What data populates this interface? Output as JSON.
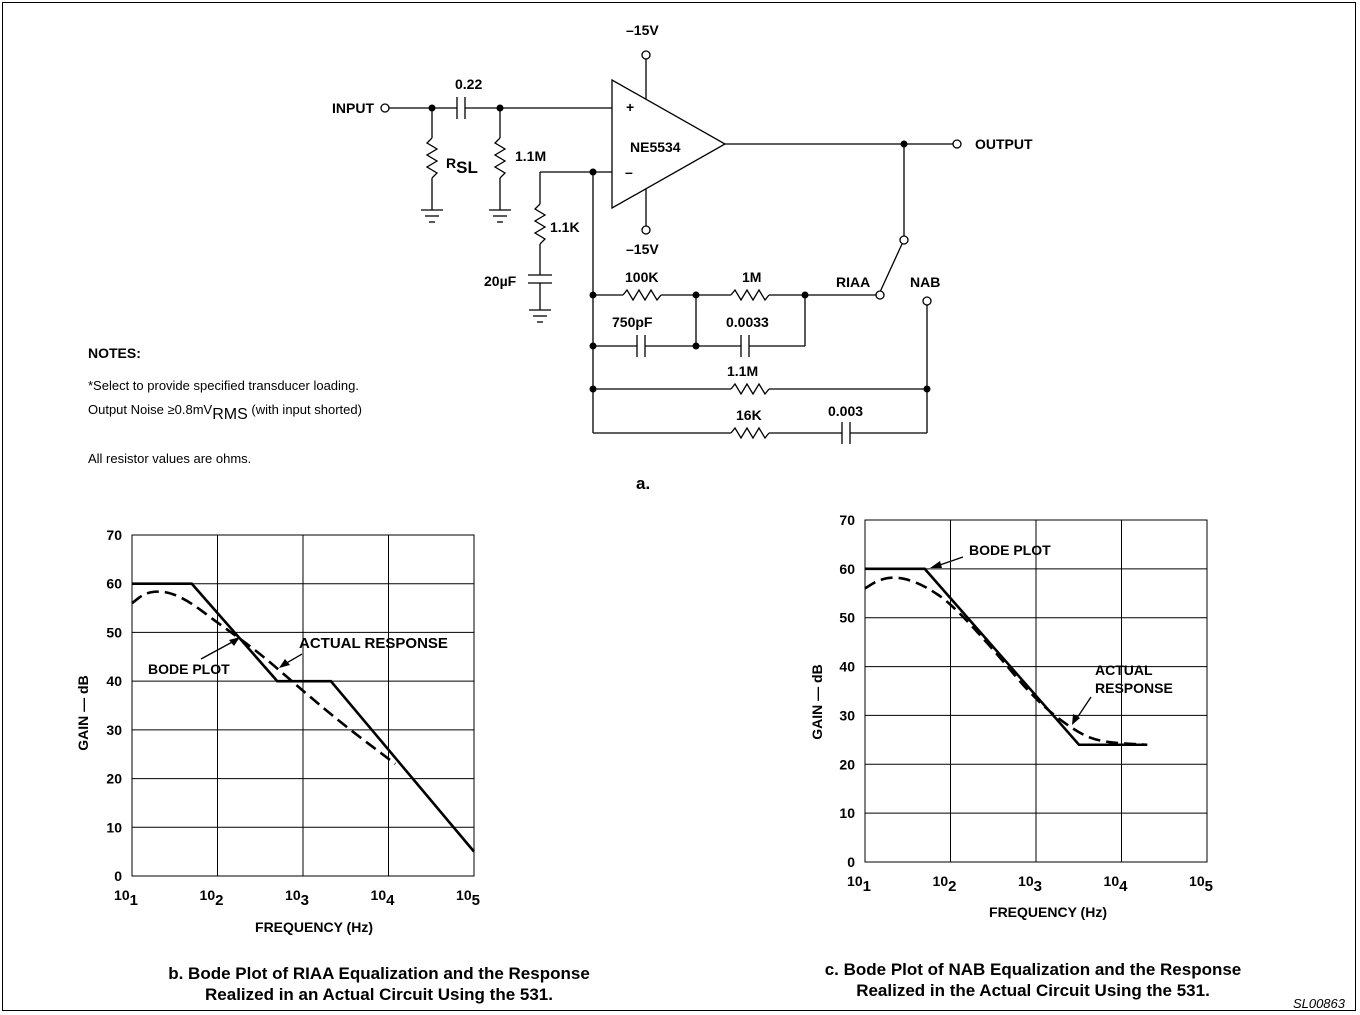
{
  "schematic": {
    "input_label": "INPUT",
    "output_label": "OUTPUT",
    "opamp_label": "NE5534",
    "plus_sign": "+",
    "minus_sign": "–",
    "supply_top": "–15V",
    "supply_bottom": "–15V",
    "c_input": "0.22",
    "r_sl_main": "R",
    "r_sl_sub": "SL",
    "r_bias": "1.1M",
    "r_gnd": "1.1K",
    "c_gnd": "20µF",
    "r_100k": "100K",
    "r_1m": "1M",
    "c_750p": "750pF",
    "c_0033": "0.0033",
    "r_11m": "1.1M",
    "r_16k": "16K",
    "c_0003": "0.003",
    "riaa_label": "RIAA",
    "nab_label": "NAB",
    "sub_label": "a."
  },
  "notes": {
    "title": "NOTES:",
    "line1": "*Select to provide specified transducer loading.",
    "line2_main": "Output Noise ≥0.8mV",
    "line2_sub": "RMS",
    "line2_tail": " (with input shorted)",
    "line3": "All resistor values are ohms."
  },
  "chart_data": [
    {
      "type": "line",
      "xlabel": "FREQUENCY (Hz)",
      "ylabel": "GAIN — dB",
      "x_scale": "log",
      "xlim": [
        10,
        100000
      ],
      "ylim": [
        0,
        70
      ],
      "y_ticks": [
        "0",
        "10",
        "20",
        "30",
        "40",
        "50",
        "60",
        "70"
      ],
      "x_ticks": [
        {
          "base": "10",
          "exp": "1"
        },
        {
          "base": "10",
          "exp": "2"
        },
        {
          "base": "10",
          "exp": "3"
        },
        {
          "base": "10",
          "exp": "4"
        },
        {
          "base": "10",
          "exp": "5"
        }
      ],
      "grid": true,
      "series": [
        {
          "name": "BODE PLOT",
          "style": "solid",
          "x": [
            10,
            50,
            500,
            2120,
            100000
          ],
          "y": [
            60,
            60,
            40,
            40,
            5
          ]
        },
        {
          "name": "ACTUAL RESPONSE",
          "style": "dashed",
          "x": [
            10,
            14,
            20,
            30,
            50,
            100,
            300,
            1000,
            3000,
            12000
          ],
          "y": [
            56,
            58,
            58.5,
            58,
            56,
            52,
            46,
            38,
            31,
            23
          ]
        }
      ],
      "annotations": [
        "BODE PLOT",
        "ACTUAL RESPONSE"
      ],
      "caption_line1": "b. Bode Plot of RIAA Equalization and the Response",
      "caption_line2": "Realized in an Actual Circuit Using the 531."
    },
    {
      "type": "line",
      "xlabel": "FREQUENCY (Hz)",
      "ylabel": "GAIN — dB",
      "x_scale": "log",
      "xlim": [
        10,
        100000
      ],
      "ylim": [
        0,
        70
      ],
      "y_ticks": [
        "0",
        "10",
        "20",
        "30",
        "40",
        "50",
        "60",
        "70"
      ],
      "x_ticks": [
        {
          "base": "10",
          "exp": "1"
        },
        {
          "base": "10",
          "exp": "2"
        },
        {
          "base": "10",
          "exp": "3"
        },
        {
          "base": "10",
          "exp": "4"
        },
        {
          "base": "10",
          "exp": "5"
        }
      ],
      "grid": true,
      "series": [
        {
          "name": "BODE PLOT",
          "style": "solid",
          "x": [
            10,
            50,
            3180,
            20000
          ],
          "y": [
            60,
            60,
            24,
            24
          ]
        },
        {
          "name": "ACTUAL RESPONSE",
          "style": "dashed",
          "x": [
            10,
            14,
            20,
            30,
            50,
            100,
            300,
            1000,
            3000,
            6000,
            20000
          ],
          "y": [
            56,
            57.6,
            58.3,
            58,
            56.5,
            53,
            44,
            33,
            26.5,
            24.5,
            24
          ]
        }
      ],
      "annotations": [
        "BODE PLOT",
        "ACTUAL",
        "RESPONSE"
      ],
      "caption_line1": "c. Bode Plot of NAB Equalization and the Response",
      "caption_line2": "Realized in the Actual Circuit Using the 531."
    }
  ],
  "figure_code": "SL00863"
}
